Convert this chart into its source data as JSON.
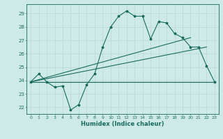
{
  "xlabel": "Humidex (Indice chaleur)",
  "bg_color": "#ceeae7",
  "grid_color": "#b8d8d5",
  "line_color": "#1a6b5e",
  "xlim": [
    -0.5,
    23.5
  ],
  "ylim": [
    21.5,
    29.7
  ],
  "yticks": [
    22,
    23,
    24,
    25,
    26,
    27,
    28,
    29
  ],
  "xticks": [
    0,
    1,
    2,
    3,
    4,
    5,
    6,
    7,
    8,
    9,
    10,
    11,
    12,
    13,
    14,
    15,
    16,
    17,
    18,
    19,
    20,
    21,
    22,
    23
  ],
  "line1_x": [
    0,
    1,
    2,
    3,
    4,
    5,
    6,
    7,
    8,
    9,
    10,
    11,
    12,
    13,
    14,
    15,
    16,
    17,
    18,
    19,
    20,
    21,
    22,
    23
  ],
  "line1_y": [
    23.9,
    24.5,
    23.9,
    23.5,
    23.6,
    21.8,
    22.2,
    23.7,
    24.5,
    26.5,
    28.0,
    28.8,
    29.2,
    28.8,
    28.8,
    27.1,
    28.4,
    28.3,
    27.5,
    27.2,
    26.5,
    26.5,
    25.1,
    23.9
  ],
  "line2_x": [
    0,
    23
  ],
  "line2_y": [
    23.9,
    23.9
  ],
  "line3_x": [
    0,
    22
  ],
  "line3_y": [
    23.9,
    26.5
  ],
  "line4_x": [
    0,
    20
  ],
  "line4_y": [
    23.9,
    27.2
  ]
}
